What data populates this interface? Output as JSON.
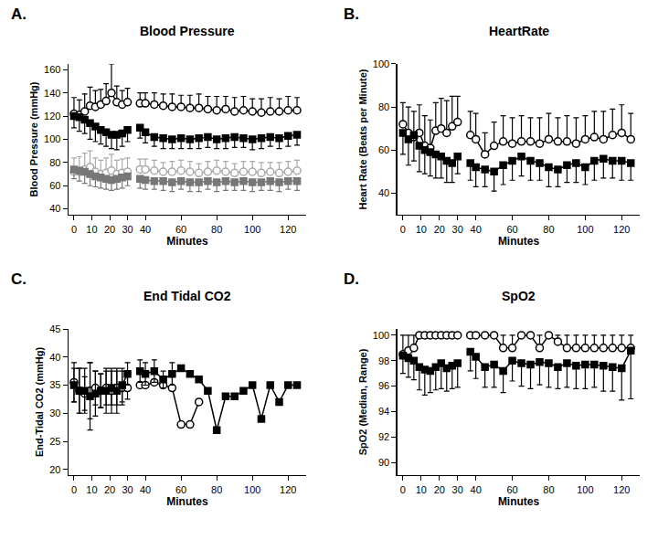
{
  "chart_data": [
    {
      "type": "line",
      "panel_label": "A.",
      "title": "Blood Pressure",
      "x_label": "Minutes",
      "y_label": "Blood Pressure (mmHg)",
      "x": [
        0,
        3,
        6,
        9,
        12,
        15,
        18,
        21,
        24,
        27,
        30,
        33,
        37,
        40,
        45,
        50,
        55,
        60,
        65,
        70,
        75,
        80,
        85,
        90,
        95,
        100,
        105,
        110,
        115,
        120,
        125
      ],
      "xlim": [
        -3,
        130
      ],
      "xticks": [
        0,
        10,
        20,
        30,
        40,
        60,
        80,
        100,
        120
      ],
      "ylim": [
        35,
        165
      ],
      "yticks": [
        40,
        60,
        80,
        100,
        120,
        140,
        160
      ],
      "grid": false,
      "series": [
        {
          "color": "#000000",
          "marker": "open_circle",
          "line_style": "solid",
          "values": [
            122,
            121,
            124,
            129,
            128,
            130,
            133,
            140,
            132,
            130,
            132,
            null,
            131,
            131,
            130,
            129,
            128,
            128,
            127,
            127,
            126,
            125,
            126,
            124,
            125,
            124,
            123,
            124,
            124,
            125,
            125
          ],
          "error_plus": [
            14,
            13,
            15,
            16,
            14,
            13,
            15,
            25,
            14,
            12,
            12,
            null,
            9,
            9,
            10,
            10,
            11,
            10,
            11,
            12,
            11,
            12,
            11,
            12,
            12,
            11,
            12,
            12,
            11,
            12,
            11
          ]
        },
        {
          "color": "#000000",
          "marker": "square",
          "line_style": "solid",
          "values": [
            120,
            119,
            117,
            114,
            111,
            108,
            106,
            104,
            104,
            105,
            108,
            null,
            110,
            106,
            102,
            101,
            100,
            101,
            100,
            101,
            102,
            100,
            101,
            102,
            101,
            100,
            101,
            102,
            101,
            103,
            104
          ],
          "error_minus": [
            10,
            12,
            12,
            14,
            13,
            12,
            12,
            12,
            13,
            11,
            10,
            null,
            9,
            9,
            8,
            9,
            8,
            9,
            8,
            9,
            9,
            8,
            9,
            9,
            8,
            9,
            9,
            8,
            9,
            9,
            9
          ]
        },
        {
          "color": "#aaaaaa",
          "marker": "open_circle",
          "line_style": "solid",
          "values": [
            72,
            72,
            74,
            76,
            72,
            70,
            71,
            73,
            70,
            71,
            72,
            null,
            74,
            74,
            73,
            72,
            72,
            73,
            72,
            71,
            72,
            73,
            72,
            71,
            72,
            72,
            71,
            72,
            71,
            72,
            73
          ],
          "error_plus": [
            12,
            13,
            14,
            14,
            12,
            12,
            13,
            14,
            12,
            12,
            12,
            null,
            9,
            9,
            9,
            8,
            9,
            9,
            9,
            8,
            9,
            9,
            9,
            8,
            9,
            9,
            9,
            8,
            9,
            9,
            9
          ]
        },
        {
          "color": "#777777",
          "marker": "square",
          "line_style": "solid",
          "values": [
            74,
            73,
            72,
            70,
            68,
            67,
            66,
            65,
            66,
            67,
            68,
            null,
            66,
            65,
            64,
            64,
            63,
            64,
            63,
            63,
            64,
            63,
            64,
            63,
            64,
            63,
            63,
            64,
            63,
            64,
            64
          ],
          "error_minus": [
            8,
            9,
            10,
            10,
            9,
            9,
            9,
            9,
            9,
            9,
            8,
            null,
            8,
            8,
            7,
            8,
            8,
            7,
            8,
            8,
            7,
            8,
            8,
            7,
            8,
            8,
            7,
            8,
            8,
            7,
            8
          ]
        }
      ]
    },
    {
      "type": "line",
      "panel_label": "B.",
      "title": "HeartRate",
      "x_label": "Minutes",
      "y_label": "Heart Rate (Beats per Minute)",
      "x": [
        0,
        3,
        6,
        9,
        12,
        15,
        18,
        21,
        24,
        27,
        30,
        33,
        37,
        40,
        45,
        50,
        55,
        60,
        65,
        70,
        75,
        80,
        85,
        90,
        95,
        100,
        105,
        110,
        115,
        120,
        125
      ],
      "xlim": [
        -3,
        130
      ],
      "xticks": [
        0,
        10,
        20,
        30,
        40,
        60,
        80,
        100,
        120
      ],
      "ylim": [
        30,
        100
      ],
      "yticks": [
        40,
        60,
        80,
        100
      ],
      "grid": false,
      "series": [
        {
          "color": "#000000",
          "marker": "open_circle",
          "line_style": "solid",
          "values": [
            72,
            68,
            66,
            68,
            62,
            61,
            69,
            70,
            68,
            71,
            73,
            null,
            67,
            65,
            58,
            62,
            64,
            63,
            64,
            64,
            63,
            65,
            64,
            64,
            63,
            65,
            66,
            65,
            67,
            68,
            65
          ],
          "error_plus": [
            10,
            12,
            12,
            13,
            14,
            13,
            13,
            14,
            15,
            14,
            12,
            null,
            11,
            12,
            10,
            11,
            12,
            12,
            12,
            11,
            12,
            12,
            11,
            12,
            12,
            11,
            12,
            13,
            12,
            13,
            12
          ]
        },
        {
          "color": "#000000",
          "marker": "square",
          "line_style": "solid",
          "values": [
            68,
            65,
            67,
            62,
            60,
            59,
            58,
            57,
            55,
            54,
            57,
            null,
            54,
            52,
            51,
            50,
            53,
            55,
            57,
            55,
            54,
            52,
            51,
            53,
            54,
            52,
            55,
            56,
            55,
            55,
            54
          ],
          "error_minus": [
            10,
            12,
            12,
            12,
            11,
            11,
            11,
            10,
            10,
            9,
            8,
            null,
            8,
            9,
            8,
            9,
            9,
            9,
            9,
            9,
            8,
            9,
            8,
            8,
            9,
            8,
            9,
            9,
            8,
            9,
            8
          ]
        }
      ]
    },
    {
      "type": "line",
      "panel_label": "C.",
      "title": "End Tidal CO2",
      "x_label": "Minutes",
      "y_label": "End-Tidal CO2 (mmHg)",
      "x": [
        0,
        3,
        6,
        9,
        12,
        15,
        18,
        21,
        24,
        27,
        30,
        33,
        37,
        40,
        45,
        50,
        55,
        60,
        65,
        70,
        75,
        80,
        85,
        90,
        95,
        100,
        105,
        110,
        115,
        120,
        125
      ],
      "xlim": [
        -3,
        130
      ],
      "xticks": [
        0,
        10,
        20,
        30,
        40,
        60,
        80,
        100,
        120
      ],
      "ylim": [
        19,
        45
      ],
      "yticks": [
        20,
        25,
        30,
        35,
        40,
        45
      ],
      "grid": false,
      "series": [
        {
          "color": "#000000",
          "marker": "open_circle",
          "line_style": "solid",
          "values": [
            35.5,
            34,
            33.5,
            34,
            34.5,
            34,
            34.5,
            34,
            34.5,
            34.5,
            34.5,
            null,
            35,
            35,
            35.5,
            35,
            34.5,
            28,
            28,
            32,
            null,
            null,
            null,
            null,
            null,
            null,
            null,
            null,
            null,
            null,
            null
          ],
          "error": [
            3.5,
            4,
            3,
            5,
            3,
            3,
            3,
            4,
            3,
            3,
            2,
            null,
            null,
            null,
            null,
            null,
            null,
            null,
            null,
            null,
            null,
            null,
            null,
            null,
            null,
            null,
            null,
            null,
            null,
            null,
            null
          ]
        },
        {
          "color": "#000000",
          "marker": "square",
          "line_style": "solid",
          "values": [
            35,
            34,
            34,
            33,
            33.5,
            34,
            34,
            34.5,
            34,
            35,
            37,
            null,
            37.5,
            37,
            37.5,
            36,
            37,
            38,
            37,
            36,
            34,
            27,
            33,
            33,
            34,
            35,
            29,
            35,
            32,
            35,
            35
          ],
          "error": [
            3,
            4,
            4,
            6,
            4,
            3,
            4,
            3,
            4,
            3,
            2,
            null,
            2,
            2,
            2,
            1.5,
            2,
            null,
            null,
            null,
            null,
            null,
            null,
            null,
            null,
            null,
            null,
            null,
            null,
            null,
            null
          ]
        }
      ]
    },
    {
      "type": "line",
      "panel_label": "D.",
      "title": "SpO2",
      "x_label": "Minutes",
      "y_label": "SpO2 (Median, Range)",
      "x": [
        0,
        3,
        6,
        9,
        12,
        15,
        18,
        21,
        24,
        27,
        30,
        33,
        37,
        40,
        45,
        50,
        55,
        60,
        65,
        70,
        75,
        80,
        85,
        90,
        95,
        100,
        105,
        110,
        115,
        120,
        125
      ],
      "xlim": [
        -3,
        130
      ],
      "xticks": [
        0,
        10,
        20,
        30,
        40,
        60,
        80,
        100,
        120
      ],
      "ylim": [
        89,
        100.5
      ],
      "yticks": [
        90,
        92,
        94,
        96,
        98,
        100
      ],
      "grid": false,
      "series": [
        {
          "color": "#000000",
          "marker": "open_circle",
          "line_style": "solid",
          "values": [
            98.5,
            98.8,
            99,
            100,
            100,
            100,
            100,
            100,
            100,
            100,
            100,
            null,
            100,
            100,
            100,
            100,
            99,
            99,
            100,
            100,
            99,
            100,
            99.5,
            99,
            99,
            99,
            99,
            99,
            99,
            99,
            99
          ],
          "error_plus": [
            1.5,
            1.2,
            1,
            0,
            0,
            0,
            0,
            0,
            0,
            0,
            0,
            null,
            0,
            0,
            0,
            0,
            1,
            1,
            0,
            0,
            1,
            0,
            0.5,
            1,
            1,
            1,
            1,
            1,
            1,
            1,
            1
          ]
        },
        {
          "color": "#000000",
          "marker": "square",
          "line_style": "solid",
          "values": [
            98.4,
            98.2,
            98,
            97.5,
            97.3,
            97.2,
            97.5,
            97.8,
            97.4,
            97.6,
            97.8,
            null,
            98.7,
            98.3,
            97.5,
            97.7,
            97.2,
            98,
            97.8,
            97.7,
            97.9,
            97.8,
            97.5,
            97.8,
            97.6,
            97.7,
            97.7,
            97.6,
            97.5,
            97.4,
            98.8
          ],
          "error_minus": [
            1.4,
            1.5,
            1.5,
            1.8,
            2,
            1.7,
            1.8,
            2,
            1.8,
            1.8,
            1.9,
            null,
            1.5,
            1.7,
            1.6,
            1.8,
            1.7,
            1.6,
            1.8,
            1.9,
            1.8,
            1.9,
            1.7,
            1.9,
            1.8,
            1.9,
            1.8,
            2,
            1.9,
            2.5,
            3.8
          ]
        }
      ]
    }
  ]
}
